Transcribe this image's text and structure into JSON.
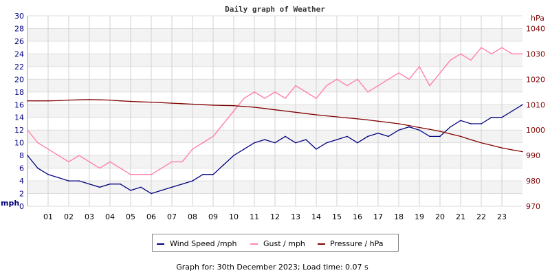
{
  "chart_data": {
    "type": "line",
    "title": "Daily graph of Weather",
    "left_axis": {
      "unit_label": "mph",
      "ylim": [
        0,
        30
      ],
      "ticks": [
        0,
        2,
        4,
        6,
        8,
        10,
        12,
        14,
        16,
        18,
        20,
        22,
        24,
        26,
        28,
        30
      ]
    },
    "right_axis": {
      "unit_label": "hPa",
      "ylim": [
        970,
        1045
      ],
      "ticks": [
        970,
        980,
        990,
        1000,
        1010,
        1020,
        1030,
        1040
      ]
    },
    "x_axis": {
      "xlim": [
        0,
        24
      ],
      "tick_labels": [
        "01",
        "02",
        "03",
        "04",
        "05",
        "06",
        "07",
        "08",
        "09",
        "10",
        "11",
        "12",
        "13",
        "14",
        "15",
        "16",
        "17",
        "18",
        "19",
        "20",
        "21",
        "22",
        "23"
      ]
    },
    "grid": true,
    "legend_placement": "bottom",
    "x_hours": [
      0,
      0.5,
      1,
      1.5,
      2,
      2.5,
      3,
      3.5,
      4,
      4.5,
      5,
      5.5,
      6,
      6.5,
      7,
      7.5,
      8,
      8.5,
      9,
      9.5,
      10,
      10.5,
      11,
      11.5,
      12,
      12.5,
      13,
      13.5,
      14,
      14.5,
      15,
      15.5,
      16,
      16.5,
      17,
      17.5,
      18,
      18.5,
      19,
      19.5,
      20,
      20.5,
      21,
      21.5,
      22,
      22.5,
      23,
      23.5,
      24
    ],
    "series": [
      {
        "name": "Wind Speed /mph",
        "axis": "left",
        "color": "#000080",
        "values": [
          8,
          6,
          5,
          4.5,
          4,
          4,
          3.5,
          3,
          3.5,
          3.5,
          2.5,
          3,
          2,
          2.5,
          3,
          3.5,
          4,
          5,
          5,
          6.5,
          8,
          9,
          10,
          10.5,
          10,
          11,
          10,
          10.5,
          9,
          10,
          10.5,
          11,
          10,
          11,
          11.5,
          11,
          12,
          12.5,
          12,
          11,
          11,
          12.5,
          13.5,
          13,
          13,
          14,
          14,
          15,
          16
        ]
      },
      {
        "name": "Gust / mph",
        "axis": "left",
        "color": "#ff88aa",
        "values": [
          12,
          10,
          9,
          8,
          7,
          8,
          7,
          6,
          7,
          6,
          5,
          5,
          5,
          6,
          7,
          7,
          9,
          10,
          11,
          13,
          15,
          17,
          18,
          17,
          18,
          17,
          19,
          18,
          17,
          19,
          20,
          19,
          20,
          18,
          19,
          20,
          21,
          20,
          22,
          19,
          21,
          23,
          24,
          23,
          25,
          24,
          25,
          24,
          24
        ]
      },
      {
        "name": "Pressure / hPa",
        "axis": "right",
        "color": "#800000",
        "values": [
          1011.5,
          1011.5,
          1011.5,
          1011.6,
          1011.8,
          1011.9,
          1012,
          1011.9,
          1011.8,
          1011.5,
          1011.3,
          1011.1,
          1011,
          1010.8,
          1010.6,
          1010.4,
          1010.2,
          1010,
          1009.8,
          1009.7,
          1009.6,
          1009.3,
          1009,
          1008.5,
          1008,
          1007.5,
          1007,
          1006.5,
          1006,
          1005.6,
          1005.2,
          1004.8,
          1004.4,
          1004,
          1003.5,
          1003,
          1002.5,
          1001.8,
          1001,
          1000.3,
          999.5,
          998.5,
          997.5,
          996.2,
          995,
          994,
          993,
          992.2,
          991.5
        ]
      }
    ]
  },
  "footer": "Graph for: 30th December 2023; Load time: 0.07 s"
}
